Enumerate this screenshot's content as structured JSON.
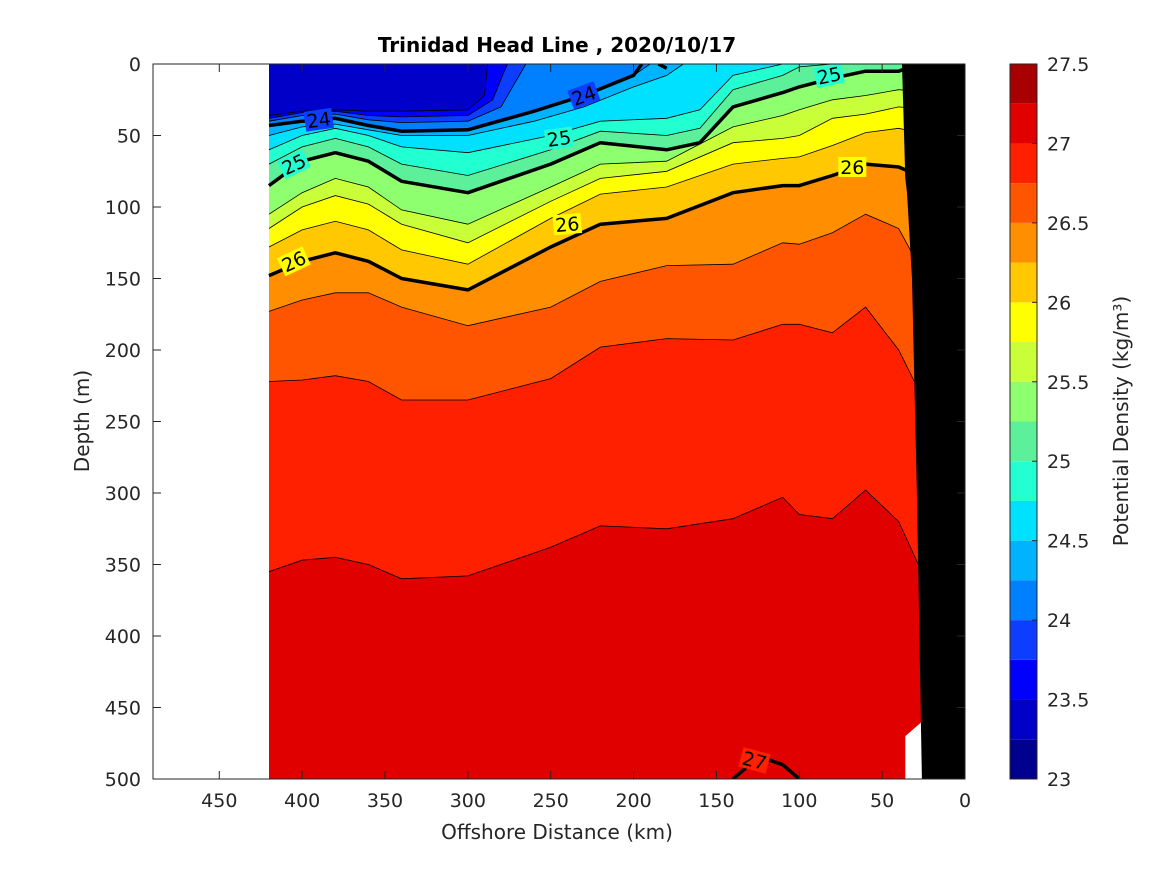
{
  "chart_data": {
    "type": "contour",
    "title": "Trinidad Head Line , 2020/10/17",
    "xlabel": "Offshore Distance (km)",
    "ylabel": "Depth (m)",
    "x_reversed": true,
    "y_reversed": true,
    "xlim": [
      0,
      490
    ],
    "ylim": [
      0,
      500
    ],
    "xticks": [
      450,
      400,
      350,
      300,
      250,
      200,
      150,
      100,
      50,
      0
    ],
    "yticks": [
      0,
      50,
      100,
      150,
      200,
      250,
      300,
      350,
      400,
      450,
      500
    ],
    "data_extent_x": [
      20,
      420
    ],
    "colorbar": {
      "label": "Potential Density (kg/m³)",
      "ticks": [
        "27.5",
        "27",
        "26.5",
        "26",
        "25.5",
        "25",
        "24.5",
        "24",
        "23.5",
        "23"
      ],
      "range": [
        23,
        27.5
      ],
      "levels": [
        23,
        23.25,
        23.5,
        23.75,
        24,
        24.25,
        24.5,
        24.75,
        25,
        25.25,
        25.5,
        25.75,
        26,
        26.25,
        26.5,
        26.75,
        27,
        27.25,
        27.5
      ],
      "colors": [
        "#00008f",
        "#0000c8",
        "#0000ff",
        "#0d3dff",
        "#0080ff",
        "#00b3ff",
        "#00e0ff",
        "#22ffd0",
        "#5cf09a",
        "#8eff6e",
        "#c8ff38",
        "#ffff00",
        "#ffc800",
        "#ff8f00",
        "#ff5500",
        "#ff2000",
        "#e00000",
        "#a80000"
      ]
    },
    "contour_bands": [
      {
        "level": 26.75,
        "profile": [
          [
            420,
            355
          ],
          [
            400,
            347
          ],
          [
            380,
            345
          ],
          [
            360,
            350
          ],
          [
            340,
            360
          ],
          [
            300,
            358
          ],
          [
            250,
            338
          ],
          [
            220,
            323
          ],
          [
            180,
            325
          ],
          [
            140,
            318
          ],
          [
            110,
            303
          ],
          [
            100,
            315
          ],
          [
            80,
            318
          ],
          [
            60,
            298
          ],
          [
            40,
            320
          ],
          [
            25,
            358
          ]
        ]
      },
      {
        "level": 26.5,
        "profile": [
          [
            420,
            222
          ],
          [
            400,
            221
          ],
          [
            380,
            218
          ],
          [
            360,
            222
          ],
          [
            340,
            235
          ],
          [
            300,
            235
          ],
          [
            250,
            220
          ],
          [
            220,
            198
          ],
          [
            180,
            192
          ],
          [
            140,
            193
          ],
          [
            110,
            182
          ],
          [
            100,
            182
          ],
          [
            80,
            188
          ],
          [
            60,
            170
          ],
          [
            40,
            200
          ],
          [
            25,
            235
          ]
        ]
      },
      {
        "level": 26.25,
        "profile": [
          [
            420,
            173
          ],
          [
            400,
            165
          ],
          [
            380,
            160
          ],
          [
            360,
            160
          ],
          [
            340,
            170
          ],
          [
            300,
            183
          ],
          [
            250,
            170
          ],
          [
            220,
            152
          ],
          [
            180,
            141
          ],
          [
            140,
            140
          ],
          [
            110,
            125
          ],
          [
            100,
            126
          ],
          [
            80,
            118
          ],
          [
            60,
            105
          ],
          [
            40,
            115
          ],
          [
            20,
            158
          ]
        ]
      },
      {
        "level": 26.0,
        "profile": [
          [
            420,
            148
          ],
          [
            400,
            138
          ],
          [
            380,
            132
          ],
          [
            360,
            138
          ],
          [
            340,
            150
          ],
          [
            300,
            158
          ],
          [
            250,
            128
          ],
          [
            220,
            112
          ],
          [
            180,
            108
          ],
          [
            140,
            90
          ],
          [
            110,
            85
          ],
          [
            100,
            85
          ],
          [
            80,
            78
          ],
          [
            60,
            70
          ],
          [
            40,
            72
          ],
          [
            20,
            82
          ]
        ]
      },
      {
        "level": 25.75,
        "profile": [
          [
            420,
            128
          ],
          [
            400,
            116
          ],
          [
            380,
            110
          ],
          [
            360,
            116
          ],
          [
            340,
            130
          ],
          [
            300,
            140
          ],
          [
            250,
            108
          ],
          [
            220,
            91
          ],
          [
            180,
            86
          ],
          [
            140,
            70
          ],
          [
            110,
            66
          ],
          [
            100,
            65
          ],
          [
            80,
            57
          ],
          [
            60,
            48
          ],
          [
            40,
            45
          ],
          [
            20,
            50
          ]
        ]
      },
      {
        "level": 25.5,
        "profile": [
          [
            420,
            115
          ],
          [
            400,
            100
          ],
          [
            380,
            92
          ],
          [
            360,
            98
          ],
          [
            340,
            112
          ],
          [
            300,
            125
          ],
          [
            250,
            96
          ],
          [
            220,
            80
          ],
          [
            180,
            75
          ],
          [
            140,
            55
          ],
          [
            110,
            52
          ],
          [
            100,
            50
          ],
          [
            80,
            38
          ],
          [
            60,
            35
          ],
          [
            40,
            30
          ],
          [
            20,
            32
          ]
        ]
      },
      {
        "level": 25.25,
        "profile": [
          [
            420,
            105
          ],
          [
            400,
            90
          ],
          [
            380,
            80
          ],
          [
            360,
            86
          ],
          [
            340,
            102
          ],
          [
            300,
            112
          ],
          [
            250,
            86
          ],
          [
            220,
            70
          ],
          [
            180,
            68
          ],
          [
            140,
            44
          ],
          [
            110,
            36
          ],
          [
            100,
            32
          ],
          [
            80,
            25
          ],
          [
            60,
            22
          ],
          [
            40,
            18
          ],
          [
            20,
            20
          ]
        ]
      },
      {
        "level": 25.0,
        "profile": [
          [
            420,
            85
          ],
          [
            400,
            68
          ],
          [
            380,
            62
          ],
          [
            360,
            68
          ],
          [
            340,
            82
          ],
          [
            300,
            90
          ],
          [
            250,
            70
          ],
          [
            220,
            55
          ],
          [
            180,
            60
          ],
          [
            160,
            55
          ],
          [
            140,
            30
          ],
          [
            110,
            20
          ],
          [
            100,
            16
          ],
          [
            80,
            10
          ],
          [
            60,
            5
          ],
          [
            40,
            5
          ],
          [
            20,
            3
          ]
        ]
      },
      {
        "level": 24.75,
        "profile": [
          [
            420,
            70
          ],
          [
            400,
            58
          ],
          [
            380,
            52
          ],
          [
            360,
            58
          ],
          [
            340,
            70
          ],
          [
            300,
            78
          ],
          [
            250,
            60
          ],
          [
            220,
            47
          ],
          [
            180,
            50
          ],
          [
            160,
            45
          ],
          [
            140,
            18
          ],
          [
            110,
            8
          ],
          [
            100,
            2
          ],
          [
            80,
            0
          ]
        ]
      },
      {
        "level": 24.5,
        "profile": [
          [
            420,
            60
          ],
          [
            400,
            50
          ],
          [
            380,
            45
          ],
          [
            360,
            50
          ],
          [
            340,
            58
          ],
          [
            300,
            62
          ],
          [
            250,
            50
          ],
          [
            220,
            40
          ],
          [
            180,
            38
          ],
          [
            160,
            32
          ],
          [
            140,
            8
          ],
          [
            110,
            0
          ]
        ]
      },
      {
        "level": 24.25,
        "profile": [
          [
            420,
            50
          ],
          [
            400,
            44
          ],
          [
            380,
            42
          ],
          [
            360,
            46
          ],
          [
            340,
            50
          ],
          [
            300,
            50
          ],
          [
            260,
            40
          ],
          [
            230,
            30
          ],
          [
            200,
            16
          ],
          [
            180,
            8
          ],
          [
            170,
            0
          ]
        ]
      },
      {
        "level": 24.0,
        "profile": [
          [
            420,
            43
          ],
          [
            400,
            40
          ],
          [
            380,
            38
          ],
          [
            360,
            43
          ],
          [
            340,
            47
          ],
          [
            300,
            46
          ],
          [
            260,
            33
          ],
          [
            230,
            22
          ],
          [
            200,
            8
          ],
          [
            190,
            0
          ]
        ]
      },
      {
        "level": 23.75,
        "profile": [
          [
            420,
            40
          ],
          [
            400,
            36
          ],
          [
            380,
            35
          ],
          [
            360,
            39
          ],
          [
            340,
            41
          ],
          [
            300,
            40
          ],
          [
            280,
            30
          ],
          [
            270,
            10
          ],
          [
            265,
            0
          ]
        ]
      },
      {
        "level": 23.5,
        "profile": [
          [
            420,
            38
          ],
          [
            400,
            34
          ],
          [
            380,
            33
          ],
          [
            360,
            36
          ],
          [
            340,
            37
          ],
          [
            300,
            36
          ],
          [
            285,
            25
          ],
          [
            278,
            5
          ],
          [
            276,
            0
          ]
        ]
      },
      {
        "level": 23.25,
        "profile": [
          [
            420,
            36
          ],
          [
            400,
            33
          ],
          [
            380,
            32
          ],
          [
            360,
            33
          ],
          [
            340,
            33
          ],
          [
            300,
            32
          ],
          [
            290,
            22
          ],
          [
            288,
            0
          ]
        ]
      }
    ],
    "bold_contours": [
      {
        "level": 24,
        "points": [
          [
            420,
            43
          ],
          [
            400,
            40
          ],
          [
            380,
            38
          ],
          [
            360,
            43
          ],
          [
            340,
            47
          ],
          [
            300,
            46
          ],
          [
            260,
            33
          ],
          [
            230,
            22
          ],
          [
            200,
            8
          ],
          [
            195,
            0
          ]
        ]
      },
      {
        "level": 24,
        "points": [
          [
            185,
            0
          ],
          [
            180,
            3
          ]
        ]
      },
      {
        "level": 25,
        "points": [
          [
            420,
            85
          ],
          [
            400,
            68
          ],
          [
            380,
            62
          ],
          [
            360,
            68
          ],
          [
            340,
            82
          ],
          [
            300,
            90
          ],
          [
            250,
            70
          ],
          [
            220,
            55
          ],
          [
            180,
            60
          ],
          [
            160,
            55
          ],
          [
            140,
            30
          ],
          [
            110,
            20
          ],
          [
            100,
            16
          ],
          [
            80,
            10
          ],
          [
            60,
            5
          ],
          [
            40,
            5
          ],
          [
            30,
            1
          ]
        ]
      },
      {
        "level": 26,
        "points": [
          [
            420,
            148
          ],
          [
            400,
            138
          ],
          [
            380,
            132
          ],
          [
            360,
            138
          ],
          [
            340,
            150
          ],
          [
            300,
            158
          ],
          [
            250,
            128
          ],
          [
            220,
            112
          ],
          [
            180,
            108
          ],
          [
            140,
            90
          ],
          [
            110,
            85
          ],
          [
            100,
            85
          ],
          [
            80,
            78
          ],
          [
            60,
            70
          ],
          [
            40,
            72
          ],
          [
            20,
            82
          ]
        ]
      },
      {
        "level": 27,
        "points": [
          [
            140,
            500
          ],
          [
            130,
            490
          ],
          [
            120,
            486
          ],
          [
            110,
            490
          ],
          [
            100,
            500
          ]
        ]
      }
    ],
    "contour_labels": [
      {
        "text": "24",
        "x": 390,
        "y": 39,
        "rotation": -8
      },
      {
        "text": "24",
        "x": 230,
        "y": 22,
        "rotation": -20
      },
      {
        "text": "25",
        "x": 405,
        "y": 70,
        "rotation": -25
      },
      {
        "text": "25",
        "x": 245,
        "y": 52,
        "rotation": -8
      },
      {
        "text": "25",
        "x": 82,
        "y": 8,
        "rotation": -12
      },
      {
        "text": "26",
        "x": 405,
        "y": 138,
        "rotation": -25
      },
      {
        "text": "26",
        "x": 240,
        "y": 112,
        "rotation": -5
      },
      {
        "text": "26",
        "x": 68,
        "y": 72,
        "rotation": 0
      },
      {
        "text": "27",
        "x": 127,
        "y": 487,
        "rotation": 15
      }
    ],
    "no_data_mask": [
      [
        36,
        500
      ],
      [
        36,
        470
      ],
      [
        26,
        460
      ],
      [
        26,
        190
      ],
      [
        22,
        185
      ],
      [
        20,
        180
      ],
      [
        20,
        0
      ]
    ],
    "bathymetry": [
      [
        26,
        500
      ],
      [
        29,
        300
      ],
      [
        32,
        150
      ],
      [
        35,
        90
      ],
      [
        36,
        80
      ],
      [
        38,
        0
      ],
      [
        0,
        0
      ],
      [
        0,
        500
      ]
    ]
  }
}
